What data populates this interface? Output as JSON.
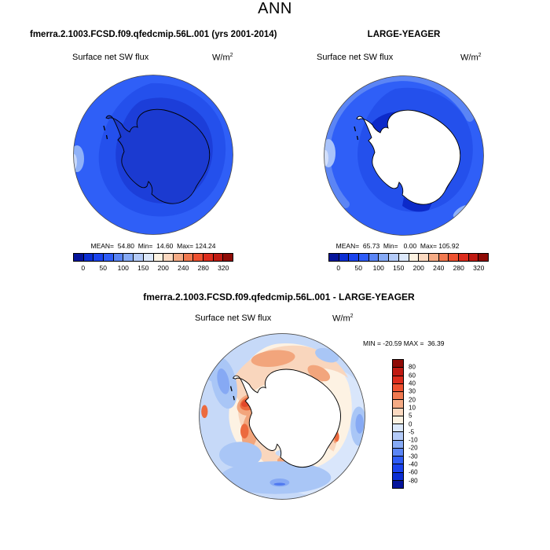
{
  "title": "ANN",
  "colorbar": {
    "palette": [
      "#05149B",
      "#0B2ED3",
      "#1A43EE",
      "#2E5CF8",
      "#5A85F6",
      "#86AAF6",
      "#B4CBF8",
      "#DCE8FA",
      "#FDF3E3",
      "#FBD9C0",
      "#F5AB85",
      "#F1794F",
      "#EE5130",
      "#DD2C1D",
      "#C01A12",
      "#8F0B06"
    ],
    "h_ticks": [
      "0",
      "50",
      "100",
      "150",
      "200",
      "240",
      "280",
      "320"
    ],
    "v_labels": [
      "80",
      "60",
      "40",
      "30",
      "20",
      "10",
      "5",
      "0",
      "-5",
      "-10",
      "-20",
      "-30",
      "-40",
      "-60",
      "-80"
    ]
  },
  "panels": {
    "left": {
      "title": "fmerra.2.1003.FCSD.f09.qfedcmip.56L.001 (yrs 2001-2014)",
      "field": "Surface net SW flux",
      "units_base": "W/m",
      "units_exp": "2",
      "stats": "MEAN=  54.80  Min=  14.60  Max= 124.24"
    },
    "right": {
      "title": "LARGE-YEAGER",
      "field": "Surface net SW flux",
      "units_base": "W/m",
      "units_exp": "2",
      "stats": "MEAN=  65.73  Min=   0.00  Max= 105.92"
    },
    "diff": {
      "title": "fmerra.2.1003.FCSD.f09.qfedcmip.56L.001 - LARGE-YEAGER",
      "field": "Surface net SW flux",
      "units_base": "W/m",
      "units_exp": "2",
      "minmax": "MIN = -20.59 MAX =  36.39"
    }
  },
  "chart_data": [
    {
      "type": "heatmap",
      "subtype": "south-polar-stereographic-contour-map",
      "title": "fmerra.2.1003.FCSD.f09.qfedcmip.56L.001 (yrs 2001-2014)",
      "variable": "Surface net SW flux",
      "units": "W/m2",
      "season": "ANN",
      "stats": {
        "mean": 54.8,
        "min": 14.6,
        "max": 124.24
      },
      "colorbar_ticks": [
        0,
        50,
        100,
        150,
        200,
        240,
        280,
        320
      ],
      "colorbar_segments": 16,
      "palette_hex": [
        "#05149B",
        "#0B2ED3",
        "#1A43EE",
        "#2E5CF8",
        "#5A85F6",
        "#86AAF6",
        "#B4CBF8",
        "#DCE8FA",
        "#FDF3E3",
        "#FBD9C0",
        "#F5AB85",
        "#F1794F",
        "#EE5130",
        "#DD2C1D",
        "#C01A12",
        "#8F0B06"
      ],
      "legend_position": "bottom",
      "notes": "All values over Antarctic region fall in 0-150 W/m2 blue range; continent darkest blue"
    },
    {
      "type": "heatmap",
      "subtype": "south-polar-stereographic-contour-map",
      "title": "LARGE-YEAGER",
      "variable": "Surface net SW flux",
      "units": "W/m2",
      "season": "ANN",
      "stats": {
        "mean": 65.73,
        "min": 0.0,
        "max": 105.92
      },
      "colorbar_ticks": [
        0,
        50,
        100,
        150,
        200,
        240,
        280,
        320
      ],
      "colorbar_segments": 16,
      "palette_hex": [
        "#05149B",
        "#0B2ED3",
        "#1A43EE",
        "#2E5CF8",
        "#5A85F6",
        "#86AAF6",
        "#B4CBF8",
        "#DCE8FA",
        "#FDF3E3",
        "#FBD9C0",
        "#F5AB85",
        "#F1794F",
        "#EE5130",
        "#DD2C1D",
        "#C01A12",
        "#8F0B06"
      ],
      "legend_position": "bottom",
      "notes": "Antarctic continent masked white (0.00); dark blue coastal waters, brighter blue open ocean"
    },
    {
      "type": "heatmap",
      "subtype": "south-polar-stereographic-difference-map",
      "title": "fmerra.2.1003.FCSD.f09.qfedcmip.56L.001 - LARGE-YEAGER",
      "variable": "Surface net SW flux",
      "units": "W/m2",
      "season": "ANN",
      "stats": {
        "min": -20.59,
        "max": 36.39
      },
      "colorbar_ticks": [
        80,
        60,
        40,
        30,
        20,
        10,
        5,
        0,
        -5,
        -10,
        -20,
        -30,
        -40,
        -60,
        -80
      ],
      "colorbar_segments": 16,
      "legend_position": "right",
      "notes": "Positive (red/orange) band along Antarctic coast, strongest near peninsula; negative (light-medium blue) over surrounding ocean"
    }
  ]
}
